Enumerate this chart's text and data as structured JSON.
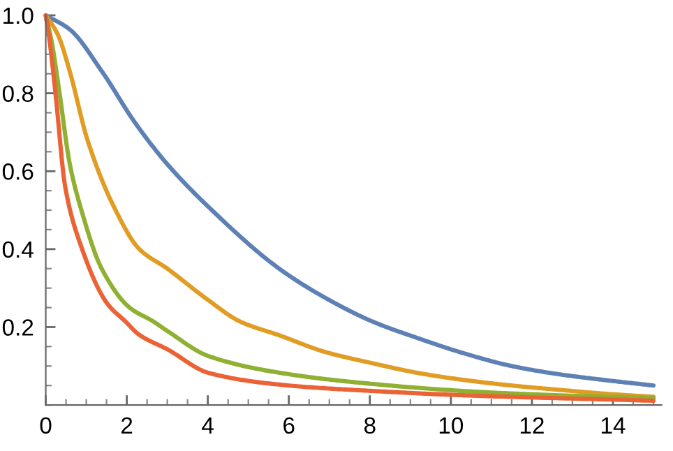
{
  "chart_data": {
    "type": "line",
    "xlim": [
      0,
      15.2
    ],
    "ylim": [
      0,
      1.0
    ],
    "xticks": [
      0,
      2,
      4,
      6,
      8,
      10,
      12,
      14
    ],
    "yticks": [
      0.2,
      0.4,
      0.6,
      0.8,
      {
        "value": 1.0,
        "label": "1.0"
      }
    ],
    "grid": false,
    "marker": "none",
    "line_style": "solid",
    "series": [
      {
        "color": "#5e81b5",
        "x": [
          0,
          0.59,
          1.38,
          2.2,
          3.0,
          4.03,
          5.76,
          6.9,
          8.07,
          9.2,
          10.34,
          11.5,
          12.66,
          13.8,
          15
        ],
        "values": [
          1.0,
          0.964,
          0.857,
          0.725,
          0.618,
          0.507,
          0.35,
          0.275,
          0.214,
          0.171,
          0.132,
          0.1,
          0.079,
          0.064,
          0.05
        ]
      },
      {
        "color": "#e19c24",
        "x": [
          0,
          0.3,
          0.59,
          1.03,
          1.69,
          2.31,
          3.0,
          4.0,
          4.8,
          5.76,
          6.9,
          8.07,
          9.2,
          10.34,
          11.5,
          12.66,
          13.8,
          15
        ],
        "values": [
          1.0,
          0.95,
          0.857,
          0.68,
          0.507,
          0.4,
          0.35,
          0.27,
          0.214,
          0.179,
          0.136,
          0.107,
          0.082,
          0.064,
          0.05,
          0.039,
          0.029,
          0.021
        ]
      },
      {
        "color": "#8fb032",
        "x": [
          0,
          0.15,
          0.34,
          0.59,
          0.86,
          1.38,
          2.07,
          2.66,
          3.0,
          4.03,
          6,
          8.07,
          10.3,
          12.6,
          15
        ],
        "values": [
          1.0,
          0.93,
          0.8,
          0.62,
          0.507,
          0.35,
          0.25,
          0.214,
          0.19,
          0.125,
          0.079,
          0.054,
          0.036,
          0.025,
          0.018
        ]
      },
      {
        "color": "#eb6235",
        "x": [
          0,
          0.1,
          0.24,
          0.48,
          0.83,
          1.52,
          1.97,
          2.31,
          3.0,
          4.03,
          6,
          8.07,
          10.3,
          15
        ],
        "values": [
          1.0,
          0.93,
          0.8,
          0.56,
          0.42,
          0.26,
          0.214,
          0.18,
          0.143,
          0.082,
          0.05,
          0.036,
          0.025,
          0.011
        ]
      }
    ]
  }
}
